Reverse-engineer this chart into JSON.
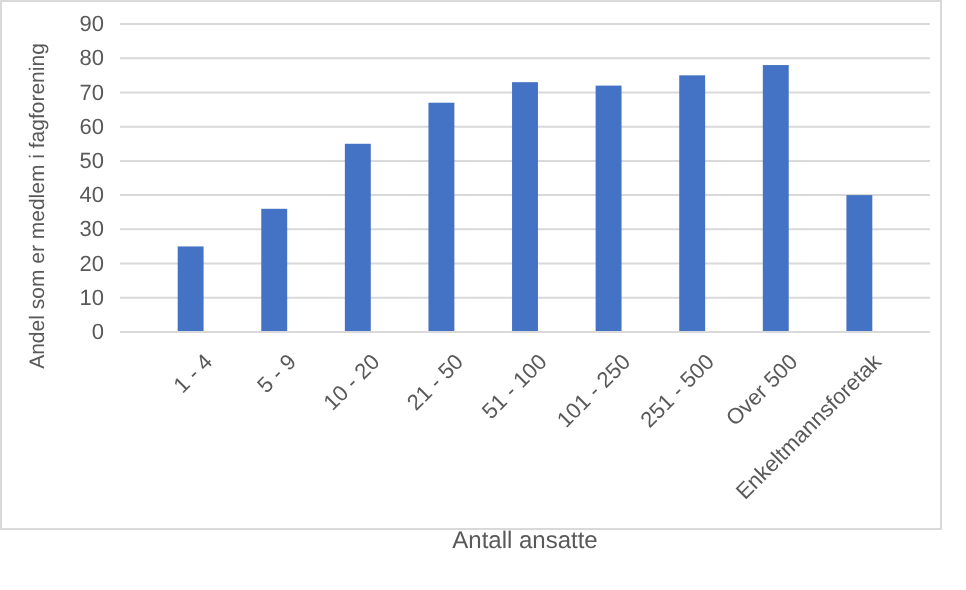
{
  "chart_data": {
    "type": "bar",
    "categories": [
      "1 - 4",
      "5 - 9",
      "10 - 20",
      "21 - 50",
      "51 - 100",
      "101 - 250",
      "251 - 500",
      "Over 500",
      "Enkeltmannsforetak"
    ],
    "values": [
      25,
      36,
      55,
      67,
      73,
      72,
      75,
      78,
      40
    ],
    "color": "#4472c4",
    "xlabel": "Antall ansatte",
    "ylabel": "Andel som er medlem i fagforening",
    "ylim": [
      0,
      90
    ],
    "yticks": [
      0,
      10,
      20,
      30,
      40,
      50,
      60,
      70,
      80,
      90
    ],
    "grid": "y"
  }
}
